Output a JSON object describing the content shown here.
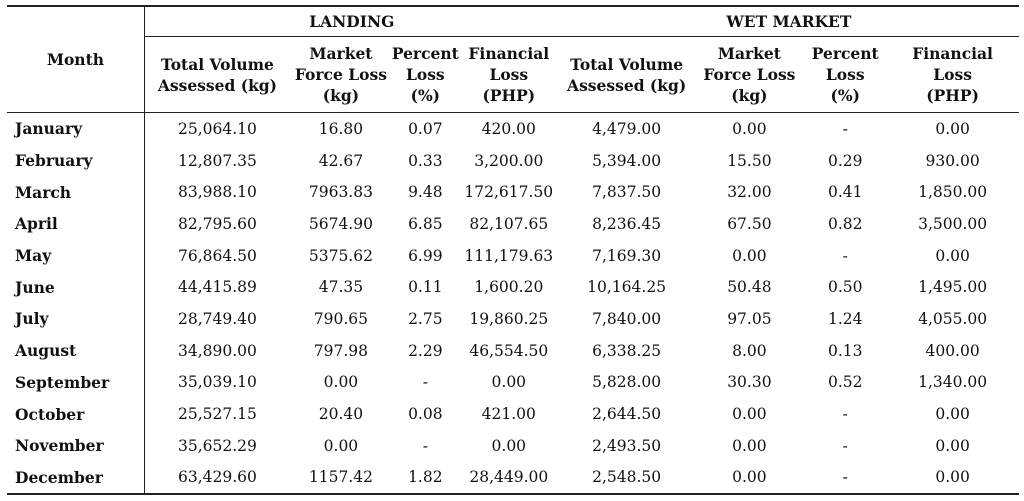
{
  "table": {
    "month_header": "Month",
    "groups": [
      "LANDING",
      "WET MARKET"
    ],
    "subheaders": [
      [
        "Total Volume",
        "Assessed (kg)"
      ],
      [
        "Market",
        "Force Loss",
        "(kg)"
      ],
      [
        "Percent",
        "Loss",
        "(%)"
      ],
      [
        "Financial",
        "Loss",
        "(PHP)"
      ],
      [
        "Total Volume",
        "Assessed (kg)"
      ],
      [
        "Market",
        "Force Loss",
        "(kg)"
      ],
      [
        "Percent",
        "Loss",
        "(%)"
      ],
      [
        "Financial",
        "Loss",
        "(PHP)"
      ]
    ],
    "rows": [
      [
        "January",
        "25,064.10",
        "16.80",
        "0.07",
        "420.00",
        "4,479.00",
        "0.00",
        "-",
        "0.00"
      ],
      [
        "February",
        "12,807.35",
        "42.67",
        "0.33",
        "3,200.00",
        "5,394.00",
        "15.50",
        "0.29",
        "930.00"
      ],
      [
        "March",
        "83,988.10",
        "7963.83",
        "9.48",
        "172,617.50",
        "7,837.50",
        "32.00",
        "0.41",
        "1,850.00"
      ],
      [
        "April",
        "82,795.60",
        "5674.90",
        "6.85",
        "82,107.65",
        "8,236.45",
        "67.50",
        "0.82",
        "3,500.00"
      ],
      [
        "May",
        "76,864.50",
        "5375.62",
        "6.99",
        "111,179.63",
        "7,169.30",
        "0.00",
        "-",
        "0.00"
      ],
      [
        "June",
        "44,415.89",
        "47.35",
        "0.11",
        "1,600.20",
        "10,164.25",
        "50.48",
        "0.50",
        "1,495.00"
      ],
      [
        "July",
        "28,749.40",
        "790.65",
        "2.75",
        "19,860.25",
        "7,840.00",
        "97.05",
        "1.24",
        "4,055.00"
      ],
      [
        "August",
        "34,890.00",
        "797.98",
        "2.29",
        "46,554.50",
        "6,338.25",
        "8.00",
        "0.13",
        "400.00"
      ],
      [
        "September",
        "35,039.10",
        "0.00",
        "-",
        "0.00",
        "5,828.00",
        "30.30",
        "0.52",
        "1,340.00"
      ],
      [
        "October",
        "25,527.15",
        "20.40",
        "0.08",
        "421.00",
        "2,644.50",
        "0.00",
        "-",
        "0.00"
      ],
      [
        "November",
        "35,652.29",
        "0.00",
        "-",
        "0.00",
        "2,493.50",
        "0.00",
        "-",
        "0.00"
      ],
      [
        "December",
        "63,429.60",
        "1157.42",
        "1.82",
        "28,449.00",
        "2,548.50",
        "0.00",
        "-",
        "0.00"
      ]
    ]
  }
}
